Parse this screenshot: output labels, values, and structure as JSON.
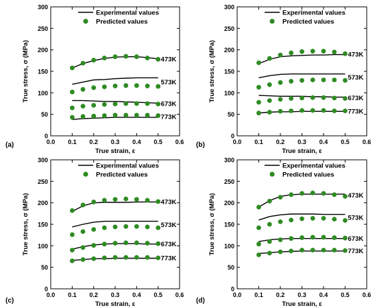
{
  "figure": {
    "legend": {
      "line_label": "Experimental values",
      "marker_label": "Predicted values"
    },
    "colors": {
      "predicted": "#2e8b22",
      "experimental": "#000000"
    }
  },
  "chart_data": [
    {
      "panel": "(a)",
      "type": "line",
      "xlabel": "True strain, ε",
      "ylabel": "True stress, σ (MPa)",
      "xlim": [
        0,
        0.6
      ],
      "ylim": [
        0,
        300
      ],
      "xticks": [
        "0.0",
        "0.1",
        "0.2",
        "0.3",
        "0.4",
        "0.5",
        "0.6"
      ],
      "yticks": [
        "0",
        "50",
        "100",
        "150",
        "200",
        "250",
        "300"
      ],
      "series": [
        {
          "name": "473K",
          "experimental": {
            "x": [
              0.1,
              0.15,
              0.2,
              0.25,
              0.3,
              0.35,
              0.4,
              0.45,
              0.5
            ],
            "y": [
              158,
              168,
              175,
              180,
              183,
              184,
              184,
              182,
              179
            ]
          },
          "predicted": {
            "x": [
              0.1,
              0.15,
              0.2,
              0.25,
              0.3,
              0.35,
              0.4,
              0.45,
              0.5
            ],
            "y": [
              158,
              169,
              176,
              181,
              184,
              185,
              184,
              181,
              178
            ]
          }
        },
        {
          "name": "573K",
          "experimental": {
            "x": [
              0.1,
              0.15,
              0.2,
              0.25,
              0.3,
              0.35,
              0.4,
              0.45,
              0.5
            ],
            "y": [
              120,
              125,
              130,
              131,
              133,
              134,
              135,
              135,
              135
            ]
          },
          "predicted": {
            "x": [
              0.1,
              0.15,
              0.2,
              0.25,
              0.3,
              0.35,
              0.4,
              0.45,
              0.5
            ],
            "y": [
              102,
              108,
              112,
              114,
              116,
              117,
              117,
              116,
              115
            ]
          }
        },
        {
          "name": "673K",
          "experimental": {
            "x": [
              0.1,
              0.15,
              0.2,
              0.25,
              0.3,
              0.35,
              0.4,
              0.45,
              0.5
            ],
            "y": [
              82,
              82,
              81,
              80,
              80,
              79,
              78,
              77,
              76
            ]
          },
          "predicted": {
            "x": [
              0.1,
              0.15,
              0.2,
              0.25,
              0.3,
              0.35,
              0.4,
              0.45,
              0.5
            ],
            "y": [
              65,
              69,
              71,
              73,
              74,
              75,
              75,
              75,
              74
            ]
          }
        },
        {
          "name": "773K",
          "experimental": {
            "x": [
              0.1,
              0.15,
              0.2,
              0.25,
              0.3,
              0.35,
              0.4,
              0.45,
              0.5
            ],
            "y": [
              38,
              40,
              41,
              42,
              43,
              43,
              43,
              43,
              43
            ]
          },
          "predicted": {
            "x": [
              0.1,
              0.15,
              0.2,
              0.25,
              0.3,
              0.35,
              0.4,
              0.45,
              0.5
            ],
            "y": [
              43,
              45,
              46,
              47,
              48,
              48,
              48,
              48,
              47
            ]
          }
        }
      ]
    },
    {
      "panel": "(b)",
      "type": "line",
      "xlabel": "True strain, ε",
      "ylabel": "True stress, σ (MPa)",
      "xlim": [
        0,
        0.6
      ],
      "ylim": [
        0,
        300
      ],
      "xticks": [
        "0.0",
        "0.1",
        "0.2",
        "0.3",
        "0.4",
        "0.5",
        "0.6"
      ],
      "yticks": [
        "0",
        "50",
        "100",
        "150",
        "200",
        "250",
        "300"
      ],
      "series": [
        {
          "name": "473K",
          "experimental": {
            "x": [
              0.1,
              0.15,
              0.2,
              0.25,
              0.3,
              0.35,
              0.4,
              0.45,
              0.5
            ],
            "y": [
              168,
              178,
              184,
              186,
              187,
              188,
              188,
              189,
              189
            ]
          },
          "predicted": {
            "x": [
              0.1,
              0.15,
              0.2,
              0.25,
              0.3,
              0.35,
              0.4,
              0.45,
              0.5
            ],
            "y": [
              170,
              180,
              188,
              193,
              196,
              197,
              197,
              195,
              191
            ]
          }
        },
        {
          "name": "573K",
          "experimental": {
            "x": [
              0.1,
              0.15,
              0.2,
              0.25,
              0.3,
              0.35,
              0.4,
              0.45,
              0.5
            ],
            "y": [
              135,
              140,
              143,
              144,
              144,
              144,
              144,
              144,
              144
            ]
          },
          "predicted": {
            "x": [
              0.1,
              0.15,
              0.2,
              0.25,
              0.3,
              0.35,
              0.4,
              0.45,
              0.5
            ],
            "y": [
              113,
              119,
              124,
              127,
              129,
              130,
              130,
              130,
              129
            ]
          }
        },
        {
          "name": "673K",
          "experimental": {
            "x": [
              0.1,
              0.15,
              0.2,
              0.25,
              0.3,
              0.35,
              0.4,
              0.45,
              0.5
            ],
            "y": [
              94,
              93,
              92,
              92,
              92,
              91,
              91,
              90,
              90
            ]
          },
          "predicted": {
            "x": [
              0.1,
              0.15,
              0.2,
              0.25,
              0.3,
              0.35,
              0.4,
              0.45,
              0.5
            ],
            "y": [
              78,
              82,
              85,
              87,
              88,
              89,
              89,
              88,
              87
            ]
          }
        },
        {
          "name": "773K",
          "experimental": {
            "x": [
              0.1,
              0.15,
              0.2,
              0.25,
              0.3,
              0.35,
              0.4,
              0.45,
              0.5
            ],
            "y": [
              53,
              55,
              56,
              56,
              57,
              57,
              57,
              57,
              57
            ]
          },
          "predicted": {
            "x": [
              0.1,
              0.15,
              0.2,
              0.25,
              0.3,
              0.35,
              0.4,
              0.45,
              0.5
            ],
            "y": [
              53,
              55,
              57,
              58,
              59,
              59,
              59,
              58,
              58
            ]
          }
        }
      ]
    },
    {
      "panel": "(c)",
      "type": "line",
      "xlabel": "True strain, ε",
      "ylabel": "True stress, σ (MPa)",
      "xlim": [
        0,
        0.6
      ],
      "ylim": [
        0,
        300
      ],
      "xticks": [
        "0.0",
        "0.1",
        "0.2",
        "0.3",
        "0.4",
        "0.5",
        "0.6"
      ],
      "yticks": [
        "0",
        "50",
        "100",
        "150",
        "200",
        "250",
        "300"
      ],
      "series": [
        {
          "name": "473K",
          "experimental": {
            "x": [
              0.1,
              0.15,
              0.2,
              0.25,
              0.3,
              0.35,
              0.4,
              0.45,
              0.5
            ],
            "y": [
              180,
              193,
              200,
              201,
              201,
              201,
              202,
              202,
              202
            ]
          },
          "predicted": {
            "x": [
              0.1,
              0.15,
              0.2,
              0.25,
              0.3,
              0.35,
              0.4,
              0.45,
              0.5
            ],
            "y": [
              182,
              195,
              202,
              206,
              208,
              209,
              208,
              206,
              203
            ]
          }
        },
        {
          "name": "573K",
          "experimental": {
            "x": [
              0.1,
              0.15,
              0.2,
              0.25,
              0.3,
              0.35,
              0.4,
              0.45,
              0.5
            ],
            "y": [
              144,
              150,
              155,
              157,
              157,
              157,
              157,
              157,
              157
            ]
          },
          "predicted": {
            "x": [
              0.1,
              0.15,
              0.2,
              0.25,
              0.3,
              0.35,
              0.4,
              0.45,
              0.5
            ],
            "y": [
              126,
              133,
              138,
              142,
              144,
              145,
              145,
              144,
              142
            ]
          }
        },
        {
          "name": "673K",
          "experimental": {
            "x": [
              0.1,
              0.15,
              0.2,
              0.25,
              0.3,
              0.35,
              0.4,
              0.45,
              0.5
            ],
            "y": [
              92,
              98,
              102,
              104,
              105,
              105,
              105,
              104,
              104
            ]
          },
          "predicted": {
            "x": [
              0.1,
              0.15,
              0.2,
              0.25,
              0.3,
              0.35,
              0.4,
              0.45,
              0.5
            ],
            "y": [
              90,
              96,
              101,
              104,
              106,
              107,
              107,
              106,
              105
            ]
          }
        },
        {
          "name": "773K",
          "experimental": {
            "x": [
              0.1,
              0.15,
              0.2,
              0.25,
              0.3,
              0.35,
              0.4,
              0.45,
              0.5
            ],
            "y": [
              66,
              68,
              70,
              70,
              71,
              71,
              71,
              71,
              71
            ]
          },
          "predicted": {
            "x": [
              0.1,
              0.15,
              0.2,
              0.25,
              0.3,
              0.35,
              0.4,
              0.45,
              0.5
            ],
            "y": [
              65,
              68,
              70,
              72,
              73,
              73,
              73,
              73,
              72
            ]
          }
        }
      ]
    },
    {
      "panel": "(d)",
      "type": "line",
      "xlabel": "True strain, ε",
      "ylabel": "True stress, σ (MPa)",
      "xlim": [
        0,
        0.6
      ],
      "ylim": [
        0,
        300
      ],
      "xticks": [
        "0.0",
        "0.1",
        "0.2",
        "0.3",
        "0.4",
        "0.5",
        "0.6"
      ],
      "yticks": [
        "0",
        "50",
        "100",
        "150",
        "200",
        "250",
        "300"
      ],
      "series": [
        {
          "name": "473K",
          "experimental": {
            "x": [
              0.1,
              0.15,
              0.2,
              0.25,
              0.3,
              0.35,
              0.4,
              0.45,
              0.5
            ],
            "y": [
              190,
              205,
              215,
              219,
              220,
              220,
              220,
              220,
              220
            ]
          },
          "predicted": {
            "x": [
              0.1,
              0.15,
              0.2,
              0.25,
              0.3,
              0.35,
              0.4,
              0.45,
              0.5
            ],
            "y": [
              190,
              204,
              213,
              219,
              222,
              223,
              222,
              219,
              215
            ]
          }
        },
        {
          "name": "573K",
          "experimental": {
            "x": [
              0.1,
              0.15,
              0.2,
              0.25,
              0.3,
              0.35,
              0.4,
              0.45,
              0.5
            ],
            "y": [
              160,
              168,
              172,
              174,
              174,
              174,
              173,
              173,
              173
            ]
          },
          "predicted": {
            "x": [
              0.1,
              0.15,
              0.2,
              0.25,
              0.3,
              0.35,
              0.4,
              0.45,
              0.5
            ],
            "y": [
              142,
              150,
              156,
              160,
              163,
              164,
              164,
              162,
              159
            ]
          }
        },
        {
          "name": "673K",
          "experimental": {
            "x": [
              0.1,
              0.15,
              0.2,
              0.25,
              0.3,
              0.35,
              0.4,
              0.45,
              0.5
            ],
            "y": [
              110,
              114,
              116,
              117,
              117,
              117,
              117,
              117,
              117
            ]
          },
          "predicted": {
            "x": [
              0.1,
              0.15,
              0.2,
              0.25,
              0.3,
              0.35,
              0.4,
              0.45,
              0.5
            ],
            "y": [
              104,
              110,
              114,
              117,
              119,
              120,
              120,
              119,
              118
            ]
          }
        },
        {
          "name": "773K",
          "experimental": {
            "x": [
              0.1,
              0.15,
              0.2,
              0.25,
              0.3,
              0.35,
              0.4,
              0.45,
              0.5
            ],
            "y": [
              82,
              84,
              86,
              87,
              88,
              88,
              88,
              88,
              88
            ]
          },
          "predicted": {
            "x": [
              0.1,
              0.15,
              0.2,
              0.25,
              0.3,
              0.35,
              0.4,
              0.45,
              0.5
            ],
            "y": [
              79,
              83,
              86,
              88,
              90,
              90,
              90,
              90,
              89
            ]
          }
        }
      ]
    }
  ]
}
